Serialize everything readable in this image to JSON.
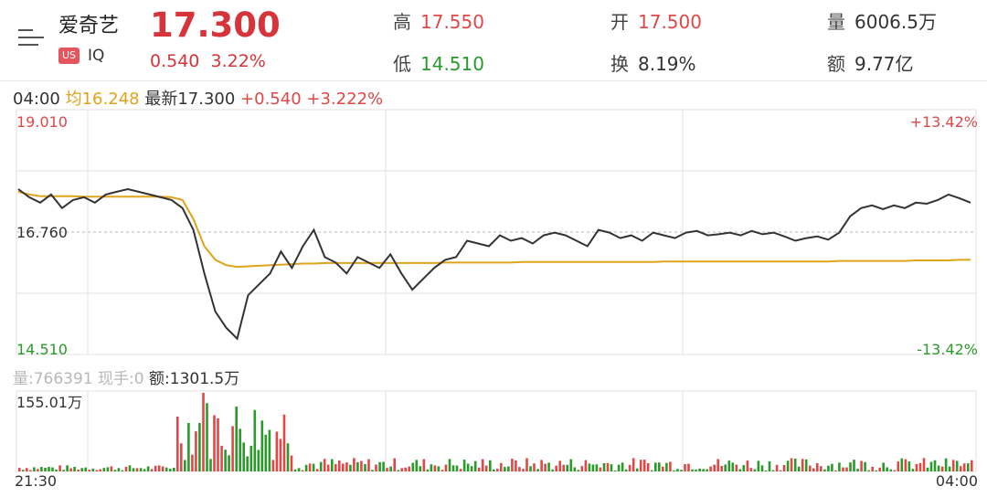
{
  "header": {
    "name": "爱奇艺",
    "market_badge": "US",
    "ticker": "IQ",
    "price": "17.300",
    "change": "0.540",
    "change_pct": "3.22%",
    "stats": {
      "high_label": "高",
      "high_value": "17.550",
      "low_label": "低",
      "low_value": "14.510",
      "open_label": "开",
      "open_value": "17.500",
      "turnover_label": "换",
      "turnover_value": "8.19%",
      "volume_label": "量",
      "volume_value": "6006.5万",
      "amount_label": "额",
      "amount_value": "9.77亿"
    }
  },
  "info_bar": {
    "time": "04:00",
    "avg_label": "均",
    "avg_value": "16.248",
    "latest_label": "最新",
    "latest_value": "17.300",
    "change": "+0.540",
    "change_pct": "+3.222%"
  },
  "volume_info": {
    "vol_label": "量:",
    "vol_value": "766391",
    "hand_label": "现手:",
    "hand_value": "0",
    "amount_label": "额:",
    "amount_value": "1301.5万"
  },
  "colors": {
    "price_line": "#333333",
    "avg_line": "#e0a31c",
    "up": "#e04848",
    "down": "#2a9a2a",
    "grid": "#e2e2e2"
  },
  "chart_data": [
    {
      "type": "line",
      "title": "",
      "x_start": "21:30",
      "x_end": "04:00",
      "ylim": [
        14.51,
        19.01
      ],
      "y_mid": 16.76,
      "pct_top": "+13.42%",
      "pct_bottom": "-13.42%",
      "tick_labels": {
        "top": "19.010",
        "mid": "16.760",
        "bottom": "14.510"
      },
      "series": [
        {
          "values": [
            17.55,
            17.4,
            17.3,
            17.45,
            17.2,
            17.35,
            17.4,
            17.3,
            17.45,
            17.5,
            17.55,
            17.5,
            17.45,
            17.4,
            17.35,
            17.2,
            16.8,
            16.0,
            15.3,
            15.0,
            14.8,
            15.6,
            15.8,
            16.0,
            16.4,
            16.1,
            16.5,
            16.8,
            16.3,
            16.2,
            16.0,
            16.3,
            16.2,
            16.1,
            16.35,
            16.0,
            15.7,
            15.9,
            16.1,
            16.25,
            16.3,
            16.6,
            16.55,
            16.5,
            16.7,
            16.6,
            16.65,
            16.55,
            16.7,
            16.75,
            16.7,
            16.6,
            16.5,
            16.8,
            16.75,
            16.65,
            16.7,
            16.6,
            16.75,
            16.7,
            16.65,
            16.75,
            16.78,
            16.7,
            16.72,
            16.75,
            16.7,
            16.78,
            16.72,
            16.75,
            16.68,
            16.6,
            16.65,
            16.68,
            16.62,
            16.75,
            17.05,
            17.2,
            17.25,
            17.18,
            17.25,
            17.2,
            17.3,
            17.28,
            17.35,
            17.45,
            17.38,
            17.3
          ]
        },
        {
          "values": [
            17.5,
            17.45,
            17.42,
            17.42,
            17.42,
            17.42,
            17.41,
            17.41,
            17.41,
            17.41,
            17.41,
            17.41,
            17.41,
            17.41,
            17.4,
            17.35,
            17.0,
            16.5,
            16.25,
            16.15,
            16.12,
            16.13,
            16.14,
            16.15,
            16.16,
            16.17,
            16.18,
            16.18,
            16.19,
            16.19,
            16.19,
            16.19,
            16.19,
            16.19,
            16.19,
            16.19,
            16.19,
            16.19,
            16.19,
            16.2,
            16.2,
            16.2,
            16.2,
            16.2,
            16.2,
            16.2,
            16.21,
            16.21,
            16.21,
            16.21,
            16.21,
            16.21,
            16.21,
            16.21,
            16.21,
            16.21,
            16.21,
            16.21,
            16.21,
            16.22,
            16.22,
            16.22,
            16.22,
            16.22,
            16.22,
            16.22,
            16.22,
            16.22,
            16.22,
            16.22,
            16.22,
            16.22,
            16.22,
            16.22,
            16.22,
            16.23,
            16.23,
            16.23,
            16.23,
            16.23,
            16.23,
            16.23,
            16.24,
            16.24,
            16.24,
            16.24,
            16.25,
            16.25
          ]
        }
      ]
    },
    {
      "type": "bar",
      "title": "",
      "ymax_label": "155.01万",
      "ylim": [
        0,
        155.01
      ],
      "x_start": "21:30",
      "x_end": "04:00"
    }
  ]
}
